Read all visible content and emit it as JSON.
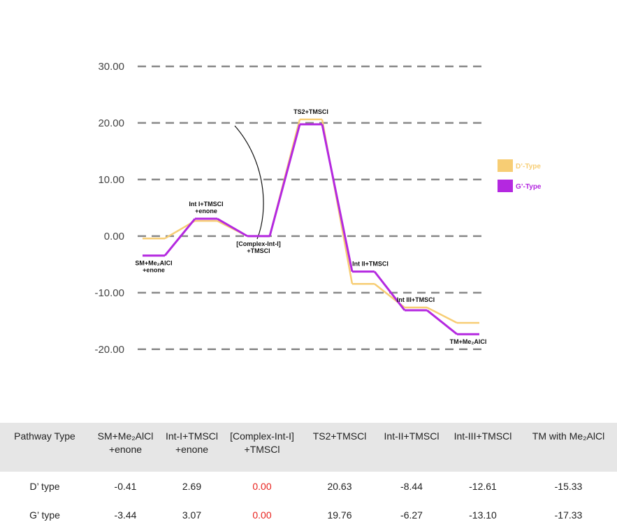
{
  "chart_data": {
    "type": "step",
    "categories": [
      "SM+Me₂AlCl\n+enone",
      "Int I+TMSCl\n+enone",
      "[Complex-Int-I]\n+TMSCl",
      "TS2+TMSCl",
      "Int II+TMSCl",
      "Int III+TMSCl",
      "TM+Me₂AlCl"
    ],
    "series": [
      {
        "name": "D’-Type",
        "color": "#f7cd74",
        "values": [
          -0.41,
          2.69,
          0,
          20.63,
          -8.44,
          -12.61,
          -15.33
        ],
        "value_labels": [
          "-0.41",
          "2.69",
          "0.00",
          "20.63",
          "-8.44",
          "-12.61",
          "-15.33"
        ]
      },
      {
        "name": "G’-Type",
        "color": "#b428e0",
        "values": [
          -3.44,
          3.07,
          0,
          19.76,
          -6.27,
          -13.1,
          -17.33
        ],
        "value_labels": [
          "-3.44",
          "3.07",
          "0.00",
          "19.76",
          "-6.27",
          "-13.10",
          "-17.33"
        ]
      }
    ],
    "ylim": [
      -22,
      40
    ],
    "yticks": [
      {
        "value": -20,
        "label": "-20.00"
      },
      {
        "value": -10,
        "label": "-10.00"
      },
      {
        "value": 0,
        "label": "0.00"
      },
      {
        "value": 10,
        "label": "10.00"
      },
      {
        "value": 20,
        "label": "20.00"
      },
      {
        "value": 30,
        "label": "30.00"
      }
    ],
    "grid": true,
    "legend": "right"
  },
  "table": {
    "columns": [
      "Pathway Type",
      "SM+Me₂AlCl\n+enone",
      "Int-I+TMSCl\n+enone",
      "[Complex-Int-I]\n+TMSCl",
      "TS2+TMSCl",
      "Int-II+TMSCl",
      "Int-III+TMSCl",
      "TM with Me₂AlCl"
    ],
    "row_labels": [
      "D’ type",
      "G’ type"
    ],
    "highlight_color": "#e8211d"
  }
}
